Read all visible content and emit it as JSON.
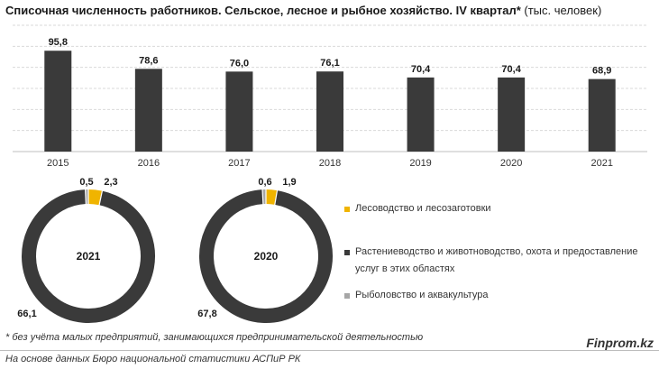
{
  "title": {
    "main": "Списочная численность работников. Сельское, лесное и рыбное хозяйство. IV квартал*",
    "unit": "(тыс. человек)"
  },
  "colors": {
    "bar": "#3a3a3a",
    "accent": "#f0b400",
    "light": "#a6a6a6",
    "grid": "#d9d9d9"
  },
  "chart_data": [
    {
      "type": "bar",
      "categories": [
        "2015",
        "2016",
        "2017",
        "2018",
        "2019",
        "2020",
        "2021"
      ],
      "values": [
        95.8,
        78.6,
        76.0,
        76.1,
        70.4,
        70.4,
        68.9
      ],
      "value_labels": [
        "95,8",
        "78,6",
        "76,0",
        "76,1",
        "70,4",
        "70,4",
        "68,9"
      ],
      "ylim": [
        0,
        120
      ],
      "grid": true
    },
    {
      "type": "pie",
      "title": "2021",
      "slices": [
        {
          "name": "Лесоводство и лесозаготовки",
          "value": 2.3,
          "label": "2,3",
          "color": "#f0b400"
        },
        {
          "name": "Растениеводство и животноводство, охота и предоставление услуг в этих областях",
          "value": 66.1,
          "label": "66,1",
          "color": "#3a3a3a"
        },
        {
          "name": "Рыболовство и аквакультура",
          "value": 0.5,
          "label": "0,5",
          "color": "#a6a6a6"
        }
      ]
    },
    {
      "type": "pie",
      "title": "2020",
      "slices": [
        {
          "name": "Лесоводство и лесозаготовки",
          "value": 1.9,
          "label": "1,9",
          "color": "#f0b400"
        },
        {
          "name": "Растениеводство и животноводство, охота и предоставление услуг в этих областях",
          "value": 67.8,
          "label": "67,8",
          "color": "#3a3a3a"
        },
        {
          "name": "Рыболовство и аквакультура",
          "value": 0.6,
          "label": "0,6",
          "color": "#a6a6a6"
        }
      ]
    }
  ],
  "legend": [
    {
      "label": "Лесоводство и лесозаготовки",
      "color": "#f0b400"
    },
    {
      "label": "Растениеводство и животноводство, охота и предоставление услуг в этих областях",
      "color": "#3a3a3a"
    },
    {
      "label": "Рыболовство и аквакультура",
      "color": "#a6a6a6"
    }
  ],
  "footnote": "* без учёта малых предприятий, занимающихся предпринимательской деятельностью",
  "source": "На основе данных Бюро национальной статистики АСПиР РК",
  "brand": "Finprom.kz"
}
